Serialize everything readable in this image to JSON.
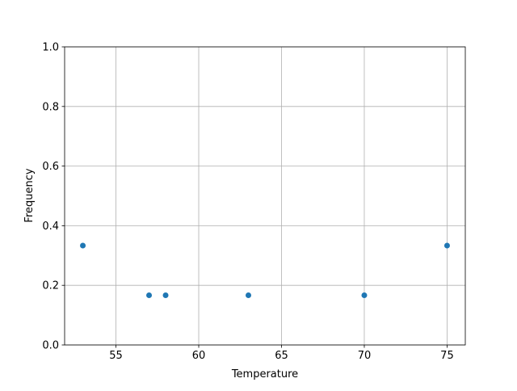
{
  "chart_data": {
    "type": "scatter",
    "title": "",
    "xlabel": "Temperature",
    "ylabel": "Frequency",
    "x": [
      53,
      57,
      58,
      63,
      70,
      75
    ],
    "y": [
      0.3333,
      0.1667,
      0.1667,
      0.1667,
      0.1667,
      0.3333
    ],
    "xlim": [
      51.9,
      76.1
    ],
    "ylim": [
      0.0,
      1.0
    ],
    "xticks": [
      "55",
      "60",
      "65",
      "70",
      "75"
    ],
    "xtick_values": [
      55,
      60,
      65,
      70,
      75
    ],
    "yticks": [
      "0.0",
      "0.2",
      "0.4",
      "0.6",
      "0.8",
      "1.0"
    ],
    "ytick_values": [
      0.0,
      0.2,
      0.4,
      0.6,
      0.8,
      1.0
    ],
    "grid": true,
    "marker_color": "#1f77b4"
  }
}
